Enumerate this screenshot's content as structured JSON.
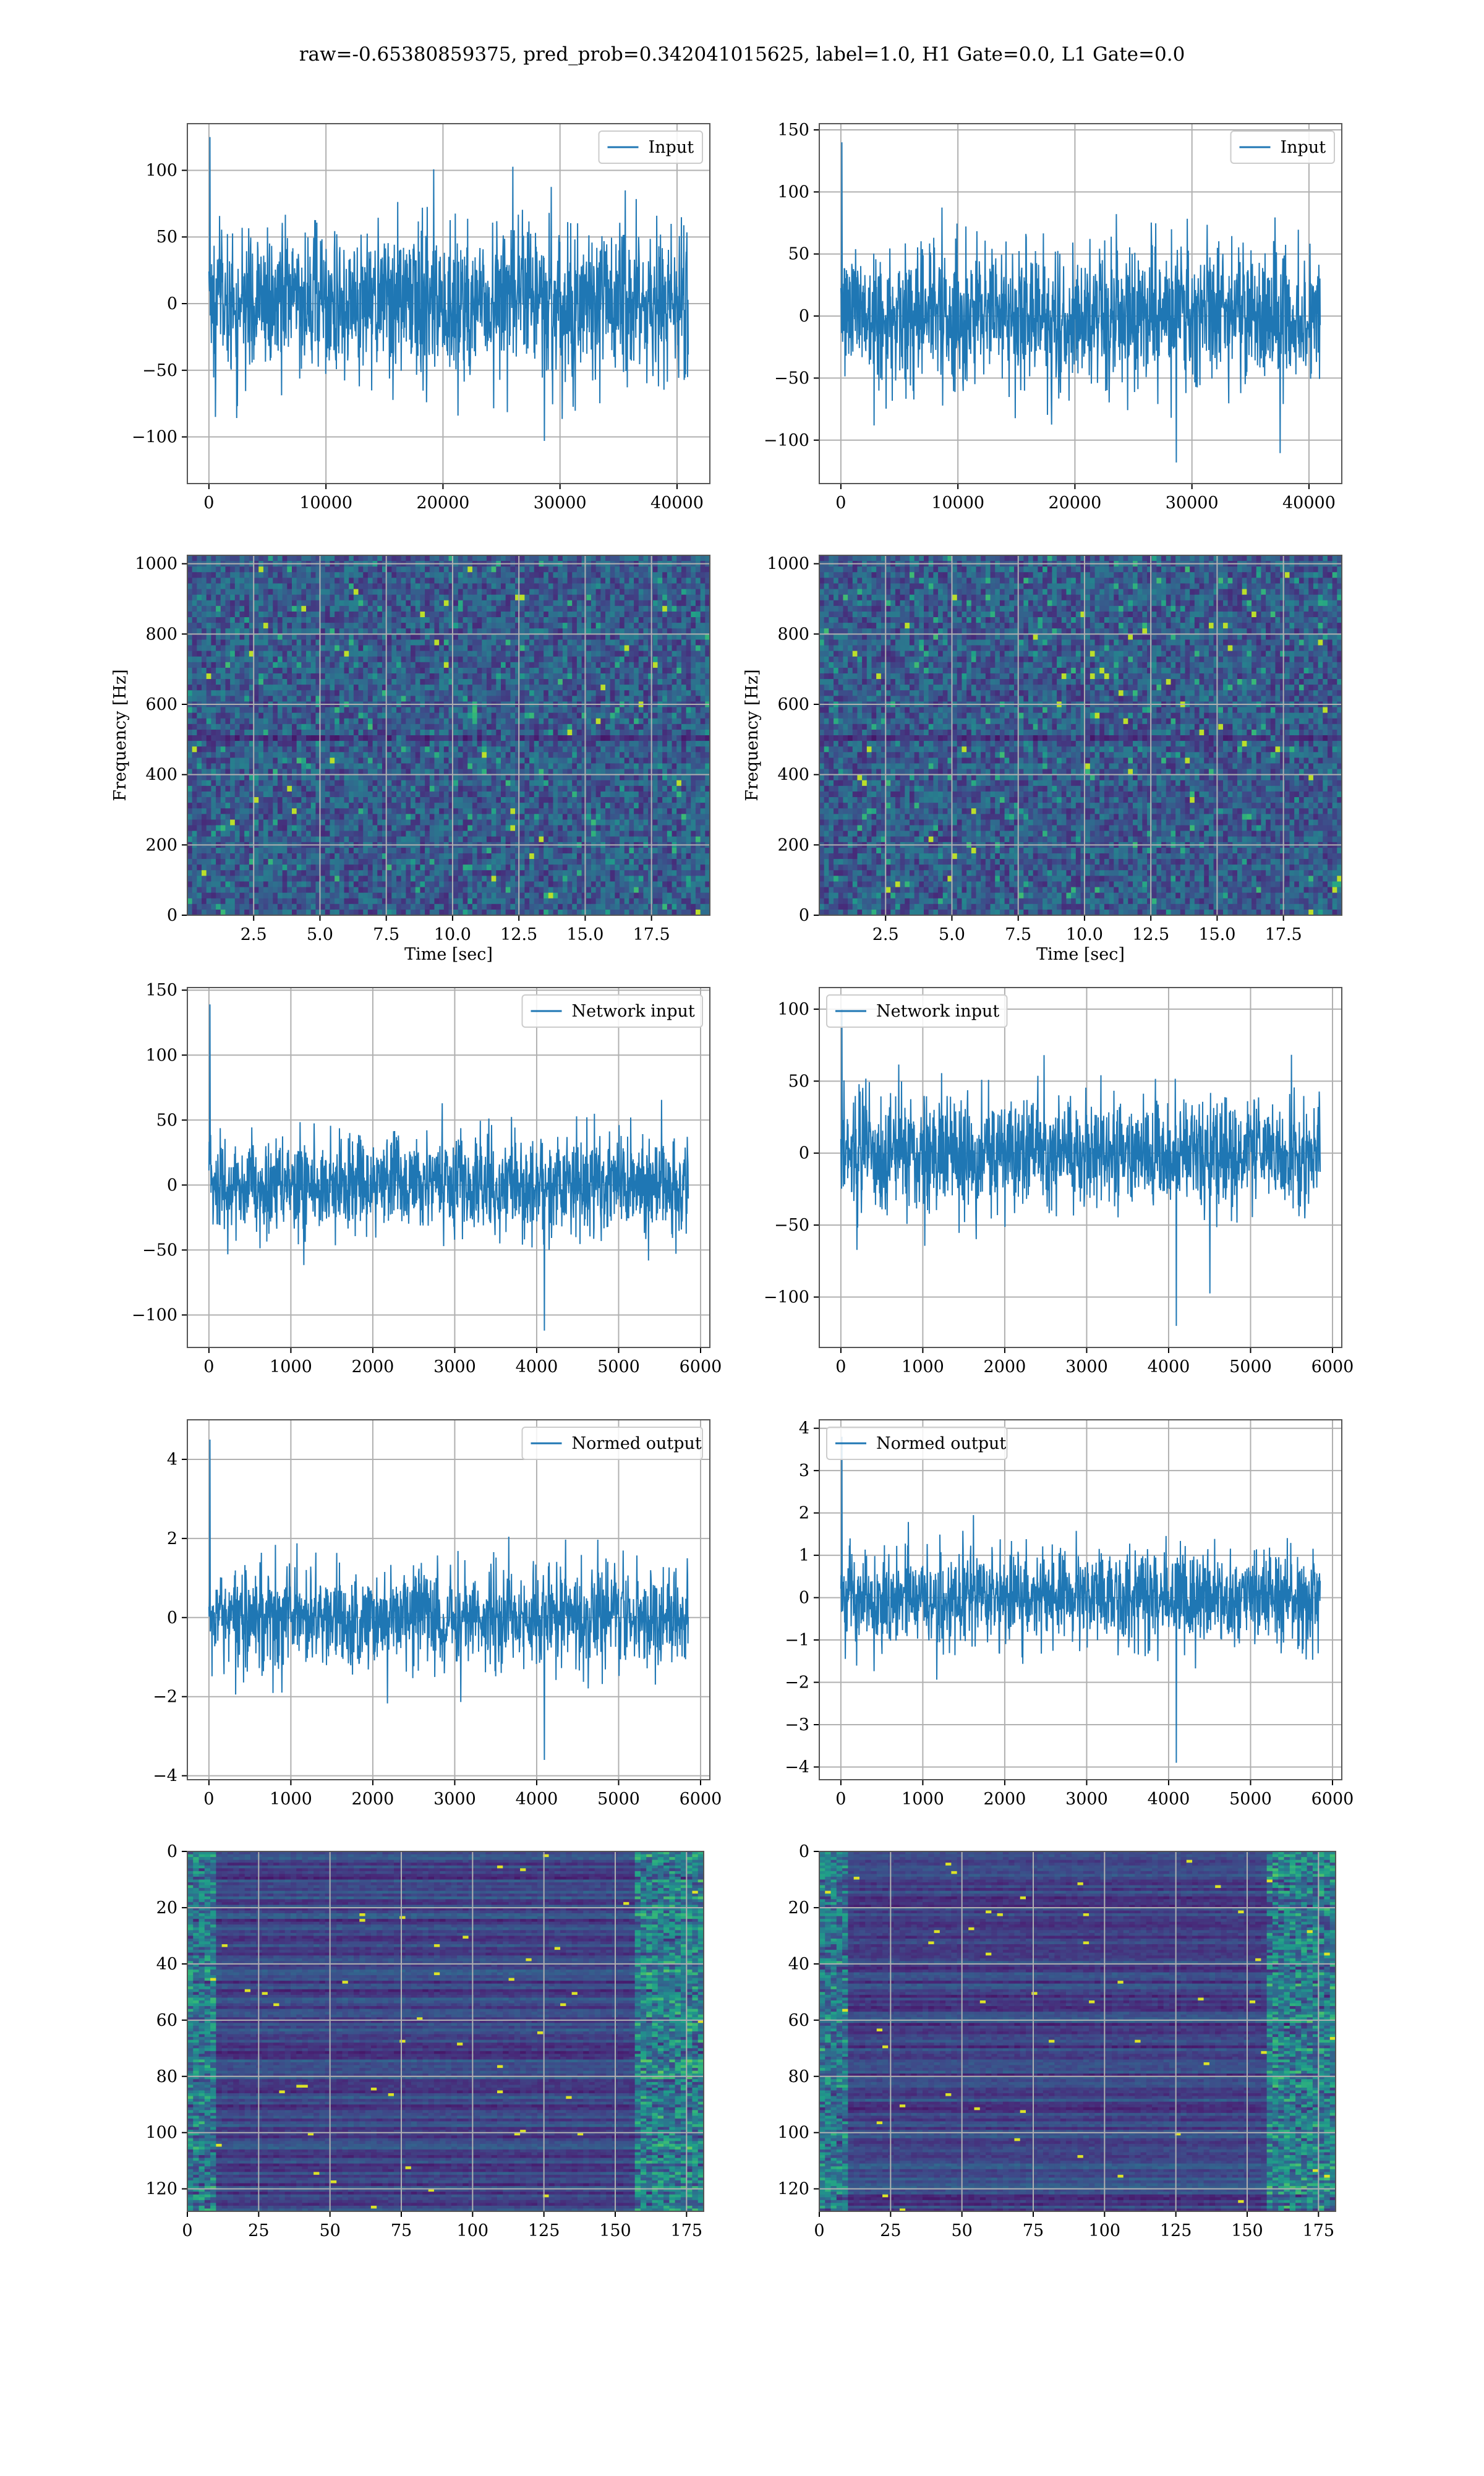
{
  "suptitle": "raw=-0.65380859375, pred_prob=0.342041015625, label=1.0, H1 Gate=0.0, L1 Gate=0.0",
  "colors": {
    "line": "#1f77b4",
    "grid": "#b0b0b0",
    "axes": "#000000"
  },
  "chart_data": [
    {
      "type": "line",
      "panel": "row1-left",
      "series": [
        {
          "name": "Input",
          "amplitude_envelope": 60,
          "max_peak": 125,
          "min_peak": -103
        }
      ],
      "x_range": [
        0,
        40960
      ],
      "ylim": [
        -135,
        135
      ],
      "xticks": [
        0,
        10000,
        20000,
        30000,
        40000
      ],
      "yticks": [
        -100,
        -50,
        0,
        50,
        100
      ],
      "legend": "upper right",
      "grid": true
    },
    {
      "type": "line",
      "panel": "row1-right",
      "series": [
        {
          "name": "Input",
          "amplitude_envelope": 60,
          "max_peak": 140,
          "min_peak": -118
        }
      ],
      "x_range": [
        0,
        40960
      ],
      "ylim": [
        -135,
        155
      ],
      "xticks": [
        0,
        10000,
        20000,
        30000,
        40000
      ],
      "yticks": [
        -100,
        -50,
        0,
        50,
        100,
        150
      ],
      "legend": "upper right",
      "grid": true
    },
    {
      "type": "heatmap",
      "panel": "row2-left",
      "colormap": "viridis",
      "xlabel": "Time [sec]",
      "ylabel": "Frequency [Hz]",
      "xlim": [
        0,
        19.7
      ],
      "ylim": [
        0,
        1024
      ],
      "xticks": [
        2.5,
        5.0,
        7.5,
        10.0,
        12.5,
        15.0,
        17.5
      ],
      "yticks": [
        0,
        200,
        400,
        600,
        800,
        1000
      ],
      "grid": true
    },
    {
      "type": "heatmap",
      "panel": "row2-right",
      "colormap": "viridis",
      "xlabel": "Time [sec]",
      "ylabel": "Frequency [Hz]",
      "xlim": [
        0,
        19.7
      ],
      "ylim": [
        0,
        1024
      ],
      "xticks": [
        2.5,
        5.0,
        7.5,
        10.0,
        12.5,
        15.0,
        17.5
      ],
      "yticks": [
        0,
        200,
        400,
        600,
        800,
        1000
      ],
      "grid": true
    },
    {
      "type": "line",
      "panel": "row3-left",
      "series": [
        {
          "name": "Network input",
          "amplitude_envelope": 40,
          "max_peak": 139,
          "min_peak": -112
        }
      ],
      "x_range": [
        0,
        5850
      ],
      "ylim": [
        -125,
        152
      ],
      "xticks": [
        0,
        1000,
        2000,
        3000,
        4000,
        5000,
        6000
      ],
      "yticks": [
        -100,
        -50,
        0,
        50,
        100,
        150
      ],
      "legend": "upper right",
      "grid": true
    },
    {
      "type": "line",
      "panel": "row3-right",
      "series": [
        {
          "name": "Network input",
          "amplitude_envelope": 40,
          "max_peak": 100,
          "min_peak": -120
        }
      ],
      "x_range": [
        0,
        5850
      ],
      "ylim": [
        -135,
        115
      ],
      "xticks": [
        0,
        1000,
        2000,
        3000,
        4000,
        5000,
        6000
      ],
      "yticks": [
        -100,
        -50,
        0,
        50,
        100
      ],
      "legend": "upper left",
      "grid": true
    },
    {
      "type": "line",
      "panel": "row4-left",
      "series": [
        {
          "name": "Normed output",
          "amplitude_envelope": 1.3,
          "max_peak": 4.5,
          "min_peak": -3.6
        }
      ],
      "x_range": [
        0,
        5850
      ],
      "ylim": [
        -4.1,
        5.0
      ],
      "xticks": [
        0,
        1000,
        2000,
        3000,
        4000,
        5000,
        6000
      ],
      "yticks": [
        -4,
        -2,
        0,
        2,
        4
      ],
      "legend": "upper right",
      "grid": true
    },
    {
      "type": "line",
      "panel": "row4-right",
      "series": [
        {
          "name": "Normed output",
          "amplitude_envelope": 1.2,
          "max_peak": 3.8,
          "min_peak": -3.9
        }
      ],
      "x_range": [
        0,
        5850
      ],
      "ylim": [
        -4.3,
        4.2
      ],
      "xticks": [
        0,
        1000,
        2000,
        3000,
        4000,
        5000,
        6000
      ],
      "yticks": [
        -4,
        -3,
        -2,
        -1,
        0,
        1,
        2,
        3,
        4
      ],
      "legend": "upper left",
      "grid": true
    },
    {
      "type": "heatmap",
      "panel": "row5-left",
      "colormap": "viridis",
      "xlim": [
        0,
        181
      ],
      "ylim": [
        128,
        0
      ],
      "xticks": [
        0,
        25,
        50,
        75,
        100,
        125,
        150,
        175
      ],
      "yticks": [
        0,
        20,
        40,
        60,
        80,
        100,
        120
      ],
      "grid": true
    },
    {
      "type": "heatmap",
      "panel": "row5-right",
      "colormap": "viridis",
      "xlim": [
        0,
        181
      ],
      "ylim": [
        128,
        0
      ],
      "xticks": [
        0,
        25,
        50,
        75,
        100,
        125,
        150,
        175
      ],
      "yticks": [
        0,
        20,
        40,
        60,
        80,
        100,
        120
      ],
      "grid": true
    }
  ]
}
